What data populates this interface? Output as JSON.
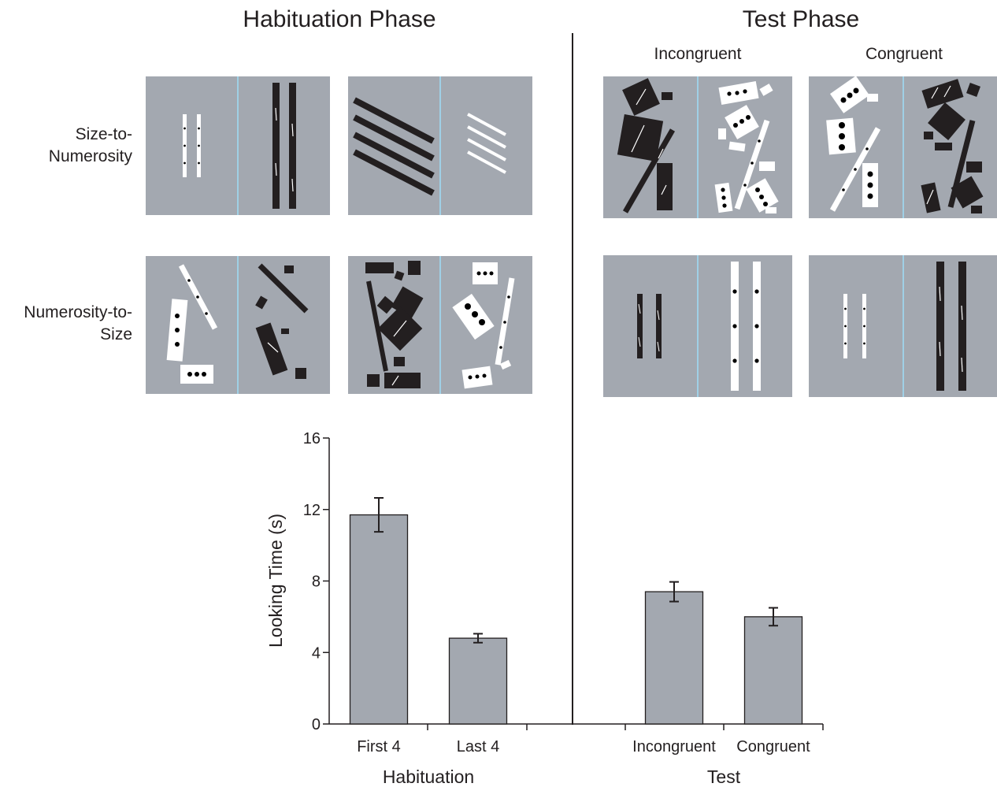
{
  "header": {
    "habituation_phase": "Habituation Phase",
    "test_phase": "Test Phase",
    "incongruent": "Incongruent",
    "congruent": "Congruent"
  },
  "rows": {
    "size_to_numerosity": [
      "Size-to-",
      "Numerosity"
    ],
    "numerosity_to_size": [
      "Numerosity-to-",
      "Size"
    ]
  },
  "colors": {
    "panel_bg": "#a3a8b0",
    "divider": "#9fd0e6",
    "bar_fill": "#a3a8b0",
    "ink": "#231f20"
  },
  "chart_data": {
    "type": "bar",
    "ylabel": "Looking Time (s)",
    "ylim": [
      0,
      16
    ],
    "yticks": [
      0,
      4,
      8,
      12,
      16
    ],
    "groups": [
      {
        "name": "Habituation",
        "categories": [
          "First 4",
          "Last 4"
        ],
        "values": [
          11.7,
          4.8
        ],
        "errors": [
          0.95,
          0.25
        ]
      },
      {
        "name": "Test",
        "categories": [
          "Incongruent",
          "Congruent"
        ],
        "values": [
          7.4,
          6.0
        ],
        "errors": [
          0.55,
          0.5
        ]
      }
    ]
  }
}
